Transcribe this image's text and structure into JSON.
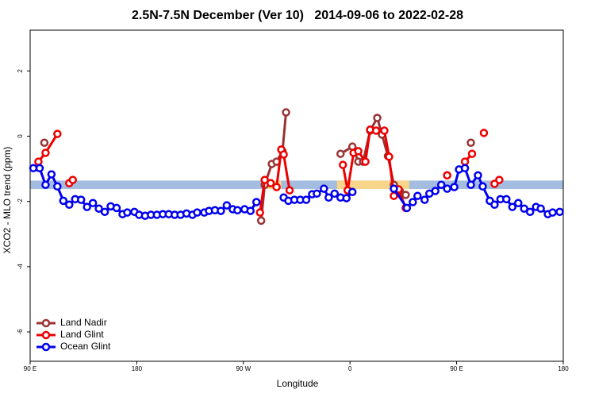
{
  "chart_data": {
    "type": "line",
    "title": "2.5N-7.5N December (Ver 10)   2014-09-06 to 2022-02-28",
    "xlabel": "Longitude",
    "ylabel": "XCO2 - MLO trend (ppm)",
    "xlim": [
      90,
      540
    ],
    "ylim": [
      -6.9,
      3.25
    ],
    "xticks": [
      {
        "value": 90,
        "label": "90 E"
      },
      180,
      {
        "value": 270,
        "label": "90 W"
      },
      {
        "value": 360,
        "label": "0"
      },
      {
        "value": 450,
        "label": "90 E"
      },
      {
        "value": 540,
        "label": "180"
      }
    ],
    "yticks": [
      -6,
      -4,
      -2,
      0,
      2
    ],
    "legend": "bottom-left",
    "bands": [
      {
        "xlim": [
          90,
          540
        ],
        "ylim": [
          -1.62,
          -1.36
        ],
        "color": "#a3bcdf"
      },
      {
        "xlim": [
          289,
          302
        ],
        "ylim": [
          -1.62,
          -1.36
        ],
        "color": "#f7d58a"
      },
      {
        "xlim": [
          349,
          410
        ],
        "ylim": [
          -1.62,
          -1.36
        ],
        "color": "#f7d58a"
      }
    ],
    "series": [
      {
        "name": "Land Nadir",
        "color": "#993333",
        "x": [
          102,
          null,
          285,
          288,
          294,
          298,
          303,
          306,
          null,
          352,
          362,
          367,
          371,
          377,
          383,
          387,
          392,
          397,
          402,
          407,
          null,
          442,
          null,
          462
        ],
        "values": [
          -0.2,
          null,
          -2.59,
          -1.49,
          -0.85,
          -0.78,
          -0.46,
          0.73,
          null,
          -0.54,
          -0.32,
          -0.78,
          -0.78,
          0.17,
          0.56,
          0.05,
          -0.61,
          -1.49,
          -1.68,
          -1.8,
          null,
          -1.2,
          null,
          -0.2
        ]
      },
      {
        "name": "Land Glint",
        "color": "#ee0000",
        "x": [
          97,
          103,
          113,
          null,
          123,
          126,
          null,
          284,
          288,
          293,
          298,
          302,
          304,
          309,
          null,
          354,
          358,
          363,
          367,
          373,
          377,
          382,
          389,
          393,
          397,
          401,
          407,
          null,
          442,
          null,
          457,
          463,
          null,
          473,
          null,
          482,
          486
        ],
        "values": [
          -0.78,
          -0.51,
          0.07,
          null,
          -1.44,
          -1.34,
          null,
          -2.34,
          -1.34,
          -1.44,
          -1.56,
          -0.41,
          -0.56,
          -1.66,
          null,
          -0.88,
          -1.66,
          -0.51,
          -0.46,
          -0.78,
          0.2,
          0.17,
          0.17,
          -0.63,
          -1.83,
          -1.63,
          -2.2,
          null,
          -1.2,
          null,
          -0.78,
          -0.54,
          null,
          0.1,
          null,
          -1.46,
          -1.34
        ]
      },
      {
        "name": "Ocean Glint",
        "color": "#0000ee",
        "x": [
          92.7,
          98,
          103,
          108,
          113,
          118,
          123,
          128,
          133,
          138,
          143,
          148,
          153,
          158,
          163,
          168,
          172,
          178,
          182,
          187,
          192,
          197,
          202,
          207,
          212,
          217,
          222,
          227,
          231,
          237,
          241,
          246,
          251,
          256,
          261,
          265,
          271,
          276,
          281,
          null,
          304,
          308,
          313,
          318,
          323,
          328,
          332,
          338,
          342,
          347,
          352,
          357,
          362,
          null,
          397,
          408,
          413,
          417,
          423,
          427,
          432,
          437,
          442,
          448,
          452,
          457,
          462,
          468,
          472,
          478,
          482,
          487,
          492,
          497,
          502,
          507,
          512,
          517,
          521,
          527,
          531,
          537
        ],
        "values": [
          -0.98,
          -0.98,
          -1.49,
          -1.17,
          -1.54,
          -1.98,
          -2.1,
          -1.93,
          -1.95,
          -2.17,
          -2.05,
          -2.22,
          -2.32,
          -2.15,
          -2.2,
          -2.39,
          -2.34,
          -2.32,
          -2.41,
          -2.44,
          -2.41,
          -2.41,
          -2.39,
          -2.39,
          -2.41,
          -2.41,
          -2.37,
          -2.41,
          -2.34,
          -2.34,
          -2.29,
          -2.27,
          -2.29,
          -2.12,
          -2.24,
          -2.27,
          -2.24,
          -2.29,
          -2.02,
          null,
          -1.88,
          -1.98,
          -1.95,
          -1.95,
          -1.95,
          -1.78,
          -1.76,
          -1.61,
          -1.88,
          -1.76,
          -1.88,
          -1.9,
          -1.71,
          null,
          -1.61,
          -2.2,
          -2.02,
          -1.83,
          -1.95,
          -1.76,
          -1.68,
          -1.49,
          -1.61,
          -1.56,
          -1.02,
          -0.98,
          -1.49,
          -1.2,
          -1.54,
          -1.98,
          -2.1,
          -1.93,
          -1.93,
          -2.17,
          -2.05,
          -2.22,
          -2.32,
          -2.17,
          -2.22,
          -2.39,
          -2.34,
          -2.32
        ]
      }
    ]
  }
}
